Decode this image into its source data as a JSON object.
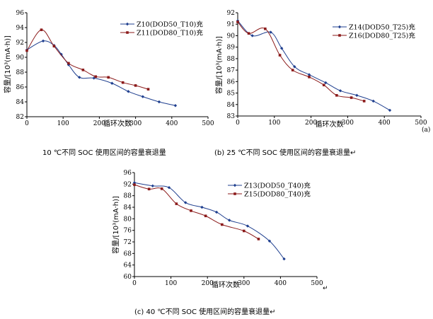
{
  "chart_data": [
    {
      "type": "line",
      "xlabel": "循环次数",
      "ylabel": "容量/[10³(mA·h)]",
      "xlim": [
        0,
        500
      ],
      "ylim": [
        82,
        96
      ],
      "xticks": [
        0,
        100,
        200,
        300,
        400,
        500
      ],
      "yticks": [
        82,
        84,
        86,
        88,
        90,
        92,
        94,
        96
      ],
      "legend_position": "top-right",
      "caption": "10 ℃不同 SOC 使用区间的容量衰退量",
      "panel_mark": "",
      "series": [
        {
          "name": "Z10(DOD50_T10)充",
          "color": "#1f3f8f",
          "marker": "diamond",
          "x": [
            0,
            45,
            75,
            95,
            115,
            145,
            185,
            235,
            280,
            320,
            365,
            410
          ],
          "y": [
            91.0,
            92.2,
            91.6,
            90.4,
            89.0,
            87.3,
            87.2,
            86.5,
            85.4,
            84.7,
            84.0,
            83.5
          ]
        },
        {
          "name": "Z11(DOD80_T10)充",
          "color": "#8b1a1a",
          "marker": "square",
          "x": [
            0,
            40,
            75,
            115,
            155,
            190,
            225,
            265,
            300,
            335
          ],
          "y": [
            90.9,
            93.7,
            91.5,
            89.2,
            88.3,
            87.4,
            87.3,
            86.6,
            86.2,
            85.7
          ]
        }
      ]
    },
    {
      "type": "line",
      "xlabel": "循环次数",
      "ylabel": "容量/[10³(mA·h)]",
      "xlim": [
        0,
        500
      ],
      "ylim": [
        83,
        92
      ],
      "xticks": [
        0,
        100,
        200,
        300,
        400,
        500
      ],
      "yticks": [
        83,
        84,
        85,
        86,
        87,
        88,
        89,
        90,
        91,
        92
      ],
      "legend_position": "top-right",
      "caption": "(b) 25 ℃不同 SOC 使用区间的容量衰退量↵",
      "panel_mark": "(a)",
      "series": [
        {
          "name": "Z14(DOD50_T25)充",
          "color": "#1f3f8f",
          "marker": "diamond",
          "x": [
            0,
            40,
            90,
            120,
            155,
            195,
            240,
            280,
            325,
            370,
            415
          ],
          "y": [
            91.3,
            90.0,
            90.3,
            88.9,
            87.3,
            86.6,
            85.9,
            85.2,
            84.8,
            84.3,
            83.5
          ]
        },
        {
          "name": "Z16(DOD80_T25)充",
          "color": "#8b1a1a",
          "marker": "square",
          "x": [
            0,
            30,
            75,
            115,
            150,
            195,
            235,
            270,
            310,
            345
          ],
          "y": [
            91.2,
            90.2,
            90.6,
            88.3,
            87.0,
            86.4,
            85.7,
            84.8,
            84.6,
            84.3
          ]
        }
      ]
    },
    {
      "type": "line",
      "xlabel": "循环次数",
      "ylabel": "容量/[10³(mA·h)]",
      "xlim": [
        0,
        500
      ],
      "ylim": [
        60,
        96
      ],
      "xticks": [
        0,
        100,
        200,
        300,
        400,
        500
      ],
      "yticks": [
        60,
        64,
        68,
        72,
        76,
        80,
        84,
        88,
        92,
        96
      ],
      "legend_position": "top-right",
      "caption": "(c) 40 ℃不同 SOC 使用区间的容量衰退量↵",
      "panel_mark": "",
      "series": [
        {
          "name": "Z13(DOD50_T40)充",
          "color": "#1f3f8f",
          "marker": "diamond",
          "x": [
            0,
            50,
            95,
            140,
            185,
            225,
            260,
            310,
            370,
            410
          ],
          "y": [
            92.5,
            91.4,
            90.8,
            85.6,
            84.0,
            82.3,
            79.5,
            77.5,
            72.3,
            66.1
          ]
        },
        {
          "name": "Z15(DOD80_T40)充",
          "color": "#8b1a1a",
          "marker": "square",
          "x": [
            0,
            40,
            75,
            115,
            155,
            195,
            240,
            300,
            340
          ],
          "y": [
            91.8,
            90.3,
            90.4,
            85.2,
            82.8,
            81.0,
            78.0,
            75.8,
            73.0
          ]
        }
      ]
    }
  ],
  "footer_marks": [
    "↵"
  ]
}
